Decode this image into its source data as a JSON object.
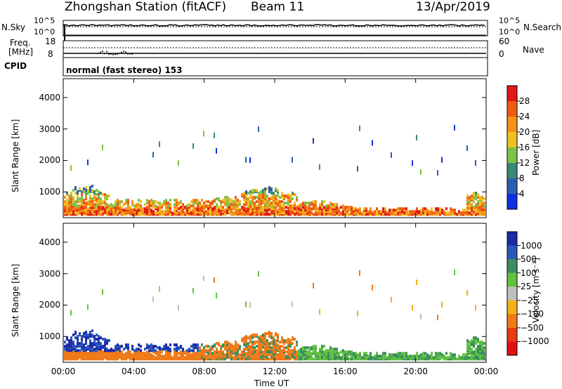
{
  "header": {
    "station": "Zhongshan Station (fitACF)",
    "beam": "Beam 11",
    "date": "13/Apr/2019"
  },
  "top_panels": {
    "nsky_label": "N.Sky",
    "nsky_ticks": [
      "10^5",
      "10^0"
    ],
    "nsearch_label": "N.Search",
    "nsearch_ticks": [
      "10^5",
      "10^0"
    ],
    "freq_label_1": "Freq.",
    "freq_label_2": "[MHz]",
    "freq_ticks": [
      "18",
      "8"
    ],
    "nave_label": "Nave",
    "nave_ticks": [
      "60",
      "0"
    ],
    "cpid_label": "CPID",
    "cpid_text": "normal (fast stereo) 153"
  },
  "chart_data": [
    {
      "type": "heatmap",
      "name": "power",
      "ylabel": "Slant Range [km]",
      "ylim": [
        180,
        4600
      ],
      "yticks": [
        "1000",
        "2000",
        "3000",
        "4000"
      ],
      "colorbar_label": "Power [dB]",
      "colorbar_ticks": [
        "4",
        "8",
        "12",
        "16",
        "20",
        "24",
        "28"
      ],
      "colors": [
        "#1030e0",
        "#2a5fb0",
        "#3a8a78",
        "#7cc34a",
        "#f0c020",
        "#f59018",
        "#f05a10",
        "#e01818"
      ]
    },
    {
      "type": "heatmap",
      "name": "velocity",
      "ylabel": "Slant Range [km]",
      "ylim": [
        180,
        4600
      ],
      "yticks": [
        "1000",
        "2000",
        "3000",
        "4000"
      ],
      "colorbar_label": "Velocity [m s⁻¹]",
      "colorbar_ticks": [
        "1000",
        "500",
        "100",
        "25",
        "−25",
        "−100",
        "−500",
        "−1000"
      ],
      "colors": [
        "#1a2aa8",
        "#2a58b8",
        "#3a8e60",
        "#62c23e",
        "#bfbfbf",
        "#f5b018",
        "#f07a18",
        "#e83a10",
        "#e01010"
      ]
    }
  ],
  "xaxis": {
    "label": "Time UT",
    "ticks": [
      "00:00",
      "04:00",
      "08:00",
      "12:00",
      "16:00",
      "20:00",
      "00:00"
    ]
  }
}
